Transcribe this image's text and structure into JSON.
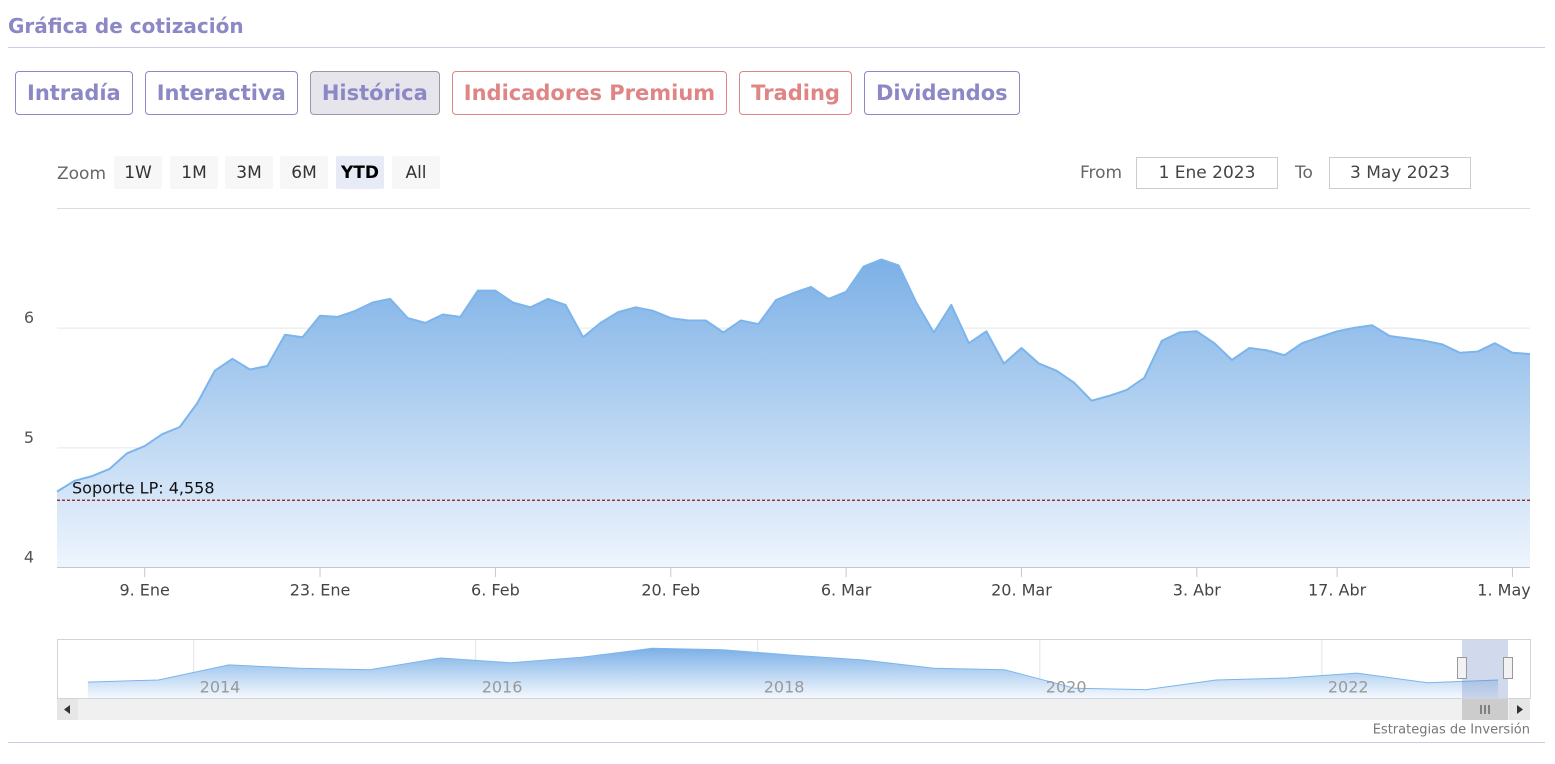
{
  "header": {
    "title": "Gráfica de cotización"
  },
  "tabs": [
    {
      "label": "Intradía",
      "color": "#8c87c5"
    },
    {
      "label": "Interactiva",
      "color": "#8c87c5"
    },
    {
      "label": "Histórica",
      "color": "#8c87c5",
      "active": true
    },
    {
      "label": "Indicadores Premium",
      "color": "#e08585"
    },
    {
      "label": "Trading",
      "color": "#e08585"
    },
    {
      "label": "Dividendos",
      "color": "#8c87c5"
    }
  ],
  "range_selector": {
    "label": "Zoom",
    "buttons": [
      {
        "label": "1W"
      },
      {
        "label": "1M"
      },
      {
        "label": "3M"
      },
      {
        "label": "6M"
      },
      {
        "label": "YTD",
        "selected": true
      },
      {
        "label": "All"
      }
    ]
  },
  "date_inputs": {
    "from_label": "From",
    "from": "1 Ene 2023",
    "to_label": "To",
    "to": "3 May 2023"
  },
  "chart_data": [
    {
      "type": "area",
      "color": "#7cb5ec",
      "grid": true,
      "categories": [
        null,
        null,
        null,
        null,
        null,
        "9. Ene",
        null,
        null,
        null,
        null,
        null,
        null,
        null,
        null,
        null,
        "23. Ene",
        null,
        null,
        null,
        null,
        null,
        null,
        null,
        null,
        null,
        "6. Feb",
        null,
        null,
        null,
        null,
        null,
        null,
        null,
        null,
        null,
        "20. Feb",
        null,
        null,
        null,
        null,
        null,
        null,
        null,
        null,
        null,
        "6. Mar",
        null,
        null,
        null,
        null,
        null,
        null,
        null,
        null,
        null,
        "20. Mar",
        null,
        null,
        null,
        null,
        null,
        null,
        null,
        null,
        null,
        "3. Abr",
        null,
        null,
        null,
        null,
        null,
        null,
        null,
        "17. Abr",
        null,
        null,
        null,
        null,
        null,
        null,
        null,
        null,
        null,
        "1. May",
        null
      ],
      "values": [
        4.63,
        4.72,
        4.76,
        4.82,
        4.95,
        5.01,
        5.11,
        5.17,
        5.37,
        5.64,
        5.74,
        5.65,
        5.68,
        5.94,
        5.92,
        6.1,
        6.09,
        6.14,
        6.21,
        6.24,
        6.08,
        6.04,
        6.11,
        6.09,
        6.31,
        6.31,
        6.21,
        6.17,
        6.24,
        6.19,
        5.92,
        6.04,
        6.13,
        6.17,
        6.14,
        6.08,
        6.06,
        6.06,
        5.96,
        6.06,
        6.03,
        6.23,
        6.29,
        6.34,
        6.24,
        6.3,
        6.51,
        6.57,
        6.52,
        6.21,
        5.96,
        6.19,
        5.87,
        5.97,
        5.7,
        5.83,
        5.7,
        5.64,
        5.54,
        5.39,
        5.43,
        5.48,
        5.58,
        5.89,
        5.96,
        5.97,
        5.87,
        5.73,
        5.83,
        5.81,
        5.77,
        5.87,
        5.92,
        5.97,
        6.0,
        6.02,
        5.93,
        5.91,
        5.89,
        5.86,
        5.79,
        5.8,
        5.87,
        5.79,
        5.78
      ],
      "ylim": [
        4,
        7
      ],
      "yticks": [
        4,
        5,
        6
      ],
      "plot_lines": [
        {
          "value": 4.558,
          "label": "Soporte LP: 4,558",
          "color": "#8b1a1a"
        }
      ]
    },
    {
      "type": "area",
      "color": "#7cb5ec",
      "x": [
        2013.25,
        2013.75,
        2014.25,
        2014.75,
        2015.25,
        2015.75,
        2016.25,
        2016.75,
        2017.25,
        2017.75,
        2018.25,
        2018.75,
        2019.25,
        2019.75,
        2020.25,
        2020.75,
        2021.25,
        2021.75,
        2022.25,
        2022.75,
        2023.25
      ],
      "values": [
        5.6,
        5.9,
        8.1,
        7.6,
        7.4,
        9.1,
        8.4,
        9.2,
        10.5,
        10.3,
        9.5,
        8.8,
        7.6,
        7.4,
        4.7,
        4.5,
        5.9,
        6.2,
        6.9,
        5.5,
        5.9
      ],
      "xlim": [
        2013.18,
        2023.32
      ],
      "xticks": [
        2014,
        2016,
        2018,
        2020,
        2022
      ],
      "ylim": [
        3.3,
        11.7
      ]
    }
  ],
  "credits": "Estrategias de Inversión"
}
